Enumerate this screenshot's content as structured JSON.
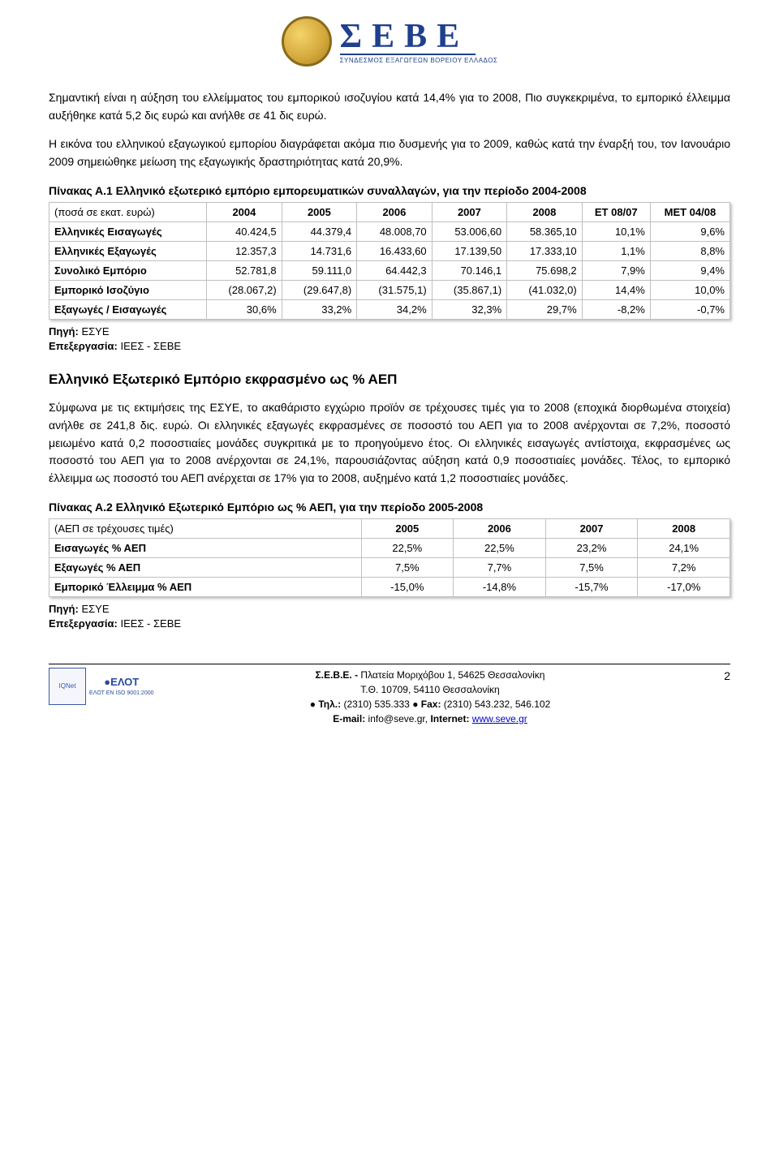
{
  "logo": {
    "title": "ΣΕΒΕ",
    "subtitle": "ΣΥΝΔΕΣΜΟΣ ΕΞΑΓΩΓΕΩΝ ΒΟΡΕΙΟΥ ΕΛΛΑΔΟΣ"
  },
  "paragraph1": "Σημαντική είναι η αύξηση του ελλείμματος του εμπορικού ισοζυγίου κατά 14,4% για το 2008, Πιο συγκεκριμένα, το εμπορικό έλλειμμα αυξήθηκε κατά 5,2 δις ευρώ και ανήλθε σε 41 δις ευρώ.",
  "paragraph2": "Η εικόνα του ελληνικού εξαγωγικού εμπορίου διαγράφεται ακόμα πιο δυσμενής για το 2009, καθώς κατά την έναρξή του, τον Ιανουάριο 2009 σημειώθηκε μείωση της εξαγωγικής δραστηριότητας κατά 20,9%.",
  "table1": {
    "title": "Πίνακας Α.1 Ελληνικό εξωτερικό εμπόριο εμπορευματικών συναλλαγών, για την περίοδο 2004-2008",
    "row_header": "(ποσά σε εκατ. ευρώ)",
    "columns": [
      "2004",
      "2005",
      "2006",
      "2007",
      "2008",
      "ΕΤ 08/07",
      "ΜΕΤ 04/08"
    ],
    "rows": [
      {
        "label": "Ελληνικές Εισαγωγές",
        "cells": [
          "40.424,5",
          "44.379,4",
          "48.008,70",
          "53.006,60",
          "58.365,10",
          "10,1%",
          "9,6%"
        ]
      },
      {
        "label": "Ελληνικές Εξαγωγές",
        "cells": [
          "12.357,3",
          "14.731,6",
          "16.433,60",
          "17.139,50",
          "17.333,10",
          "1,1%",
          "8,8%"
        ]
      },
      {
        "label": "Συνολικό Εμπόριο",
        "cells": [
          "52.781,8",
          "59.111,0",
          "64.442,3",
          "70.146,1",
          "75.698,2",
          "7,9%",
          "9,4%"
        ]
      },
      {
        "label": "Εμπορικό Ισοζύγιο",
        "cells": [
          "(28.067,2)",
          "(29.647,8)",
          "(31.575,1)",
          "(35.867,1)",
          "(41.032,0)",
          "14,4%",
          "10,0%"
        ]
      },
      {
        "label": "Εξαγωγές / Εισαγωγές",
        "cells": [
          "30,6%",
          "33,2%",
          "34,2%",
          "32,3%",
          "29,7%",
          "-8,2%",
          "-0,7%"
        ]
      }
    ]
  },
  "source1_label": "Πηγή:",
  "source1_value": " ΕΣΥΕ",
  "source2_label": "Επεξεργασία:",
  "source2_value": " ΙΕΕΣ - ΣΕΒΕ",
  "section_heading": "Ελληνικό Εξωτερικό Εμπόριο εκφρασμένο ως % ΑΕΠ",
  "paragraph3": "Σύμφωνα με τις εκτιμήσεις της ΕΣΥΕ, το ακαθάριστο εγχώριο προϊόν σε τρέχουσες τιμές για το 2008 (εποχικά διορθωμένα στοιχεία) ανήλθε σε 241,8 δις. ευρώ. Οι ελληνικές εξαγωγές εκφρασμένες σε ποσοστό του ΑΕΠ για το 2008 ανέρχονται σε 7,2%, ποσοστό μειωμένο κατά 0,2 ποσοστιαίες μονάδες συγκριτικά με το προηγούμενο έτος. Οι ελληνικές εισαγωγές αντίστοιχα, εκφρασμένες ως ποσοστό του ΑΕΠ για το 2008 ανέρχονται σε 24,1%, παρουσιάζοντας αύξηση κατά 0,9 ποσοστιαίες μονάδες. Τέλος, το εμπορικό έλλειμμα ως ποσοστό του ΑΕΠ ανέρχεται σε 17% για το 2008, αυξημένο κατά 1,2 ποσοστιαίες μονάδες.",
  "table2": {
    "title": "Πίνακας Α.2 Ελληνικό Εξωτερικό Εμπόριο ως % ΑΕΠ, για την περίοδο 2005-2008",
    "row_header": "(ΑΕΠ σε τρέχουσες τιμές)",
    "columns": [
      "2005",
      "2006",
      "2007",
      "2008"
    ],
    "rows": [
      {
        "label": "Εισαγωγές % ΑΕΠ",
        "cells": [
          "22,5%",
          "22,5%",
          "23,2%",
          "24,1%"
        ]
      },
      {
        "label": "Εξαγωγές % ΑΕΠ",
        "cells": [
          "7,5%",
          "7,7%",
          "7,5%",
          "7,2%"
        ]
      },
      {
        "label": "Εμπορικό Έλλειμμα % ΑΕΠ",
        "cells": [
          "-15,0%",
          "-14,8%",
          "-15,7%",
          "-17,0%"
        ]
      }
    ]
  },
  "footer": {
    "line1a": "Σ.Ε.Β.Ε. - ",
    "line1b": "Πλατεία Μοριχόβου 1, 54625 Θεσσαλονίκη",
    "line2": "Τ.Θ. 10709, 54110 Θεσσαλονίκη",
    "line3a": "Τηλ.:",
    "line3b": " (2310) 535.333 ",
    "line3c": "Fax:",
    "line3d": " (2310) 543.232, 546.102",
    "line4a": "E-mail:",
    "line4b": " info@seve.gr, ",
    "line4c": "Internet: ",
    "line4d": "www.seve.gr",
    "page_num": "2",
    "cert_text": "IQNet",
    "elot_text": "●ΕΛΟΤ",
    "elot_iso": "ΕΛΟΤ EN ISO 9001:2000"
  }
}
